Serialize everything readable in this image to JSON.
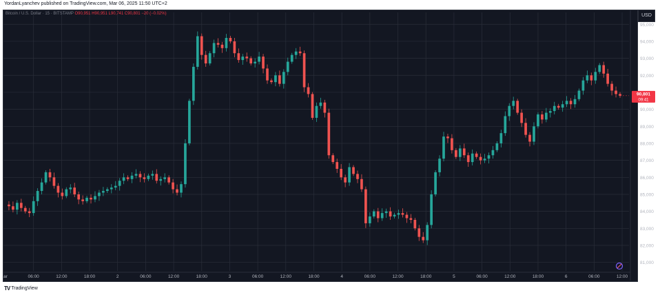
{
  "publisher_line": "YordanLyanchev published on TradingView.com, Mar 06, 2025 11:50 UTC+2",
  "legend": {
    "symbol": "Bitcoin / U.S. Dollar · 15 · BITSTAMP",
    "ohlc": "O90,951 H90,951 L90,741 C90,801 −20 (−0.02%)"
  },
  "currency_label": "USD",
  "brand": "TradingView",
  "price_tag": {
    "price": "90,801",
    "countdown": "09:41"
  },
  "colors": {
    "up": "#26a69a",
    "down": "#ef5350",
    "background": "#131722",
    "grid": "#2a2e39",
    "tag": "#f23645"
  },
  "chart_data": {
    "type": "candlestick",
    "instrument": "BTC/USD",
    "ylim": [
      80500,
      95700
    ],
    "y_ticks": [
      81000,
      82000,
      83000,
      84000,
      85000,
      86000,
      87000,
      88000,
      89000,
      90000,
      91000,
      92000,
      93000,
      94000,
      95000
    ],
    "y_tick_labels": [
      "81,000",
      "82,000",
      "83,000",
      "84,000",
      "85,000",
      "86,000",
      "87,000",
      "88,000",
      "89,000",
      "90,000",
      "91,000",
      "92,000",
      "93,000",
      "94,000",
      "95,000"
    ],
    "y_tick_top_label": "95,000",
    "x_ticks": [
      "ar",
      "06:00",
      "12:00",
      "18:00",
      "2",
      "06:00",
      "12:00",
      "18:00",
      "3",
      "06:00",
      "12:00",
      "18:00",
      "4",
      "06:00",
      "12:00",
      "18:00",
      "5",
      "06:00",
      "12:00",
      "18:00",
      "6",
      "06:00",
      "12:00"
    ],
    "grid": true,
    "price_path": [
      [
        0,
        84400
      ],
      [
        1,
        84300
      ],
      [
        2,
        84100
      ],
      [
        3,
        84500
      ],
      [
        4,
        84200
      ],
      [
        5,
        84000
      ],
      [
        6,
        83900
      ],
      [
        7,
        84600
      ],
      [
        8,
        85200
      ],
      [
        9,
        85700
      ],
      [
        10,
        86300
      ],
      [
        11,
        86000
      ],
      [
        12,
        85500
      ],
      [
        13,
        85100
      ],
      [
        14,
        84900
      ],
      [
        15,
        85300
      ],
      [
        16,
        85400
      ],
      [
        17,
        85000
      ],
      [
        18,
        84700
      ],
      [
        19,
        84600
      ],
      [
        20,
        84800
      ],
      [
        21,
        84700
      ],
      [
        22,
        84900
      ],
      [
        23,
        85100
      ],
      [
        24,
        85200
      ],
      [
        25,
        85300
      ],
      [
        26,
        85400
      ],
      [
        27,
        85500
      ],
      [
        28,
        85800
      ],
      [
        29,
        86000
      ],
      [
        30,
        85900
      ],
      [
        31,
        86100
      ],
      [
        32,
        86200
      ],
      [
        33,
        86000
      ],
      [
        34,
        85900
      ],
      [
        35,
        86100
      ],
      [
        36,
        86200
      ],
      [
        37,
        85800
      ],
      [
        38,
        85900
      ],
      [
        39,
        86000
      ],
      [
        40,
        85700
      ],
      [
        41,
        85300
      ],
      [
        42,
        85100
      ],
      [
        43,
        85600
      ],
      [
        44,
        88000
      ],
      [
        45,
        90500
      ],
      [
        46,
        92500
      ],
      [
        47,
        94300
      ],
      [
        48,
        93200
      ],
      [
        49,
        92700
      ],
      [
        50,
        93300
      ],
      [
        51,
        93900
      ],
      [
        52,
        93800
      ],
      [
        53,
        93600
      ],
      [
        54,
        94200
      ],
      [
        55,
        94000
      ],
      [
        56,
        93300
      ],
      [
        57,
        92900
      ],
      [
        58,
        93100
      ],
      [
        59,
        93000
      ],
      [
        60,
        92700
      ],
      [
        61,
        92800
      ],
      [
        62,
        93100
      ],
      [
        63,
        92400
      ],
      [
        64,
        91700
      ],
      [
        65,
        91600
      ],
      [
        66,
        92000
      ],
      [
        67,
        91500
      ],
      [
        68,
        92200
      ],
      [
        69,
        92800
      ],
      [
        70,
        93200
      ],
      [
        71,
        93400
      ],
      [
        72,
        93300
      ],
      [
        73,
        91300
      ],
      [
        74,
        90900
      ],
      [
        75,
        89500
      ],
      [
        76,
        90200
      ],
      [
        77,
        90400
      ],
      [
        78,
        89800
      ],
      [
        79,
        87300
      ],
      [
        80,
        86900
      ],
      [
        81,
        86500
      ],
      [
        82,
        86000
      ],
      [
        83,
        85700
      ],
      [
        84,
        86600
      ],
      [
        85,
        86200
      ],
      [
        86,
        85900
      ],
      [
        87,
        85300
      ],
      [
        88,
        83300
      ],
      [
        89,
        83700
      ],
      [
        90,
        84000
      ],
      [
        91,
        83600
      ],
      [
        92,
        83900
      ],
      [
        93,
        84000
      ],
      [
        94,
        83700
      ],
      [
        95,
        83800
      ],
      [
        96,
        83900
      ],
      [
        97,
        83800
      ],
      [
        98,
        83600
      ],
      [
        99,
        83500
      ],
      [
        100,
        83000
      ],
      [
        101,
        82500
      ],
      [
        102,
        82300
      ],
      [
        103,
        83200
      ],
      [
        104,
        85000
      ],
      [
        105,
        86300
      ],
      [
        106,
        87100
      ],
      [
        107,
        88400
      ],
      [
        108,
        88300
      ],
      [
        109,
        87600
      ],
      [
        110,
        87200
      ],
      [
        111,
        87700
      ],
      [
        112,
        87300
      ],
      [
        113,
        86900
      ],
      [
        114,
        87400
      ],
      [
        115,
        87200
      ],
      [
        116,
        87000
      ],
      [
        117,
        87100
      ],
      [
        118,
        87300
      ],
      [
        119,
        87600
      ],
      [
        120,
        88000
      ],
      [
        121,
        88600
      ],
      [
        122,
        89600
      ],
      [
        123,
        90200
      ],
      [
        124,
        90500
      ],
      [
        125,
        89800
      ],
      [
        126,
        89200
      ],
      [
        127,
        88500
      ],
      [
        128,
        88100
      ],
      [
        129,
        89000
      ],
      [
        130,
        89700
      ],
      [
        131,
        89400
      ],
      [
        132,
        89800
      ],
      [
        133,
        89900
      ],
      [
        134,
        90200
      ],
      [
        135,
        90100
      ],
      [
        136,
        90300
      ],
      [
        137,
        90500
      ],
      [
        138,
        90300
      ],
      [
        139,
        90600
      ],
      [
        140,
        91100
      ],
      [
        141,
        91700
      ],
      [
        142,
        92000
      ],
      [
        143,
        91700
      ],
      [
        144,
        92200
      ],
      [
        145,
        92600
      ],
      [
        146,
        92100
      ],
      [
        147,
        91500
      ],
      [
        148,
        91100
      ],
      [
        149,
        90900
      ],
      [
        150,
        90801
      ]
    ]
  }
}
